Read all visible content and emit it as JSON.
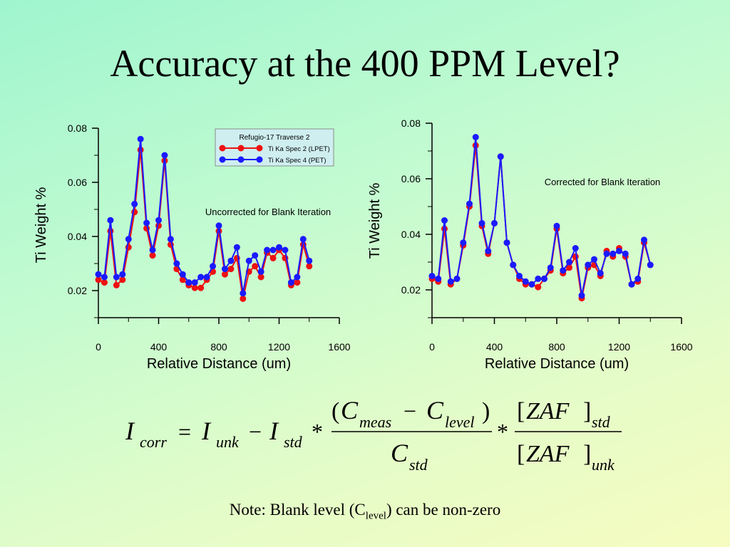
{
  "title": "Accuracy at the 400 PPM Level?",
  "colors": {
    "series1": "#ee1111",
    "series2": "#1a1aff",
    "legend_bg": "#cfeef0"
  },
  "chart_data": [
    {
      "type": "line",
      "title": "",
      "annotation": "Uncorrected for Blank Iteration",
      "xlabel": "Relative Distance (um)",
      "ylabel": "Ti Weight %",
      "xlim": [
        0,
        1600
      ],
      "ylim": [
        0.01,
        0.08
      ],
      "xticks": [
        "0",
        "400",
        "800",
        "1200",
        "1600"
      ],
      "yticks": [
        "0.02",
        "0.04",
        "0.06",
        "0.08"
      ],
      "legend": {
        "title": "Refugio-17 Traverse 2",
        "entries": [
          "Ti Ka Spec 2 (LPET)",
          "Ti Ka Spec 4 (PET)"
        ],
        "placement": "top-right"
      },
      "x": [
        0,
        40,
        80,
        120,
        160,
        200,
        240,
        280,
        320,
        360,
        400,
        440,
        480,
        520,
        560,
        600,
        640,
        680,
        720,
        760,
        800,
        840,
        880,
        920,
        960,
        1000,
        1040,
        1080,
        1120,
        1160,
        1200,
        1240,
        1280,
        1320,
        1360,
        1400
      ],
      "series": [
        {
          "name": "Ti Ka Spec 2 (LPET)",
          "values": [
            0.024,
            0.023,
            0.042,
            0.022,
            0.024,
            0.036,
            0.049,
            0.072,
            0.043,
            0.033,
            0.044,
            0.068,
            0.037,
            0.028,
            0.024,
            0.022,
            0.021,
            0.021,
            0.024,
            0.027,
            0.042,
            0.026,
            0.028,
            0.032,
            0.017,
            0.027,
            0.029,
            0.025,
            0.034,
            0.032,
            0.035,
            0.032,
            0.022,
            0.023,
            0.037,
            0.029
          ]
        },
        {
          "name": "Ti Ka Spec 4 (PET)",
          "values": [
            0.026,
            0.025,
            0.046,
            0.025,
            0.026,
            0.039,
            0.052,
            0.076,
            0.045,
            0.035,
            0.046,
            0.07,
            0.039,
            0.03,
            0.026,
            0.023,
            0.023,
            0.025,
            0.025,
            0.029,
            0.044,
            0.028,
            0.031,
            0.036,
            0.019,
            0.031,
            0.033,
            0.027,
            0.035,
            0.035,
            0.036,
            0.035,
            0.023,
            0.025,
            0.039,
            0.031
          ]
        }
      ]
    },
    {
      "type": "line",
      "title": "",
      "annotation": "Corrected for Blank Iteration",
      "xlabel": "Relative Distance (um)",
      "ylabel": "Ti Weight %",
      "xlim": [
        0,
        1600
      ],
      "ylim": [
        0.01,
        0.08
      ],
      "xticks": [
        "0",
        "400",
        "800",
        "1200",
        "1600"
      ],
      "yticks": [
        "0.02",
        "0.04",
        "0.06",
        "0.08"
      ],
      "x": [
        0,
        40,
        80,
        120,
        160,
        200,
        240,
        280,
        320,
        360,
        400,
        440,
        480,
        520,
        560,
        600,
        640,
        680,
        720,
        760,
        800,
        840,
        880,
        920,
        960,
        1000,
        1040,
        1080,
        1120,
        1160,
        1200,
        1240,
        1280,
        1320,
        1360,
        1400
      ],
      "series": [
        {
          "name": "Ti Ka Spec 2 (LPET)",
          "values": [
            0.024,
            0.023,
            0.042,
            0.022,
            0.024,
            0.036,
            0.05,
            0.072,
            0.043,
            0.033,
            0.044,
            0.068,
            0.037,
            0.029,
            0.024,
            0.022,
            0.022,
            0.021,
            0.024,
            0.027,
            0.042,
            0.026,
            0.028,
            0.032,
            0.017,
            0.028,
            0.029,
            0.025,
            0.034,
            0.032,
            0.035,
            0.032,
            0.022,
            0.023,
            0.037,
            0.029
          ]
        },
        {
          "name": "Ti Ka Spec 4 (PET)",
          "values": [
            0.025,
            0.024,
            0.045,
            0.023,
            0.024,
            0.037,
            0.051,
            0.075,
            0.044,
            0.034,
            0.044,
            0.068,
            0.037,
            0.029,
            0.025,
            0.023,
            0.022,
            0.024,
            0.024,
            0.028,
            0.043,
            0.027,
            0.03,
            0.035,
            0.018,
            0.029,
            0.031,
            0.026,
            0.033,
            0.033,
            0.034,
            0.033,
            0.022,
            0.024,
            0.038,
            0.029
          ]
        }
      ]
    }
  ],
  "formula": {
    "I": "I",
    "corr": "corr",
    "equals": "=",
    "unk": "unk",
    "minus": "−",
    "std": "std",
    "times": "*",
    "C": "C",
    "meas": "meas",
    "level": "level",
    "lparen": "(",
    "rparen": ")",
    "zaf": "ZAF",
    "lbr": "[",
    "rbr": "]"
  },
  "note": {
    "prefix": "Note: Blank level (C",
    "sub": "level",
    "suffix": ") can be non-zero"
  }
}
